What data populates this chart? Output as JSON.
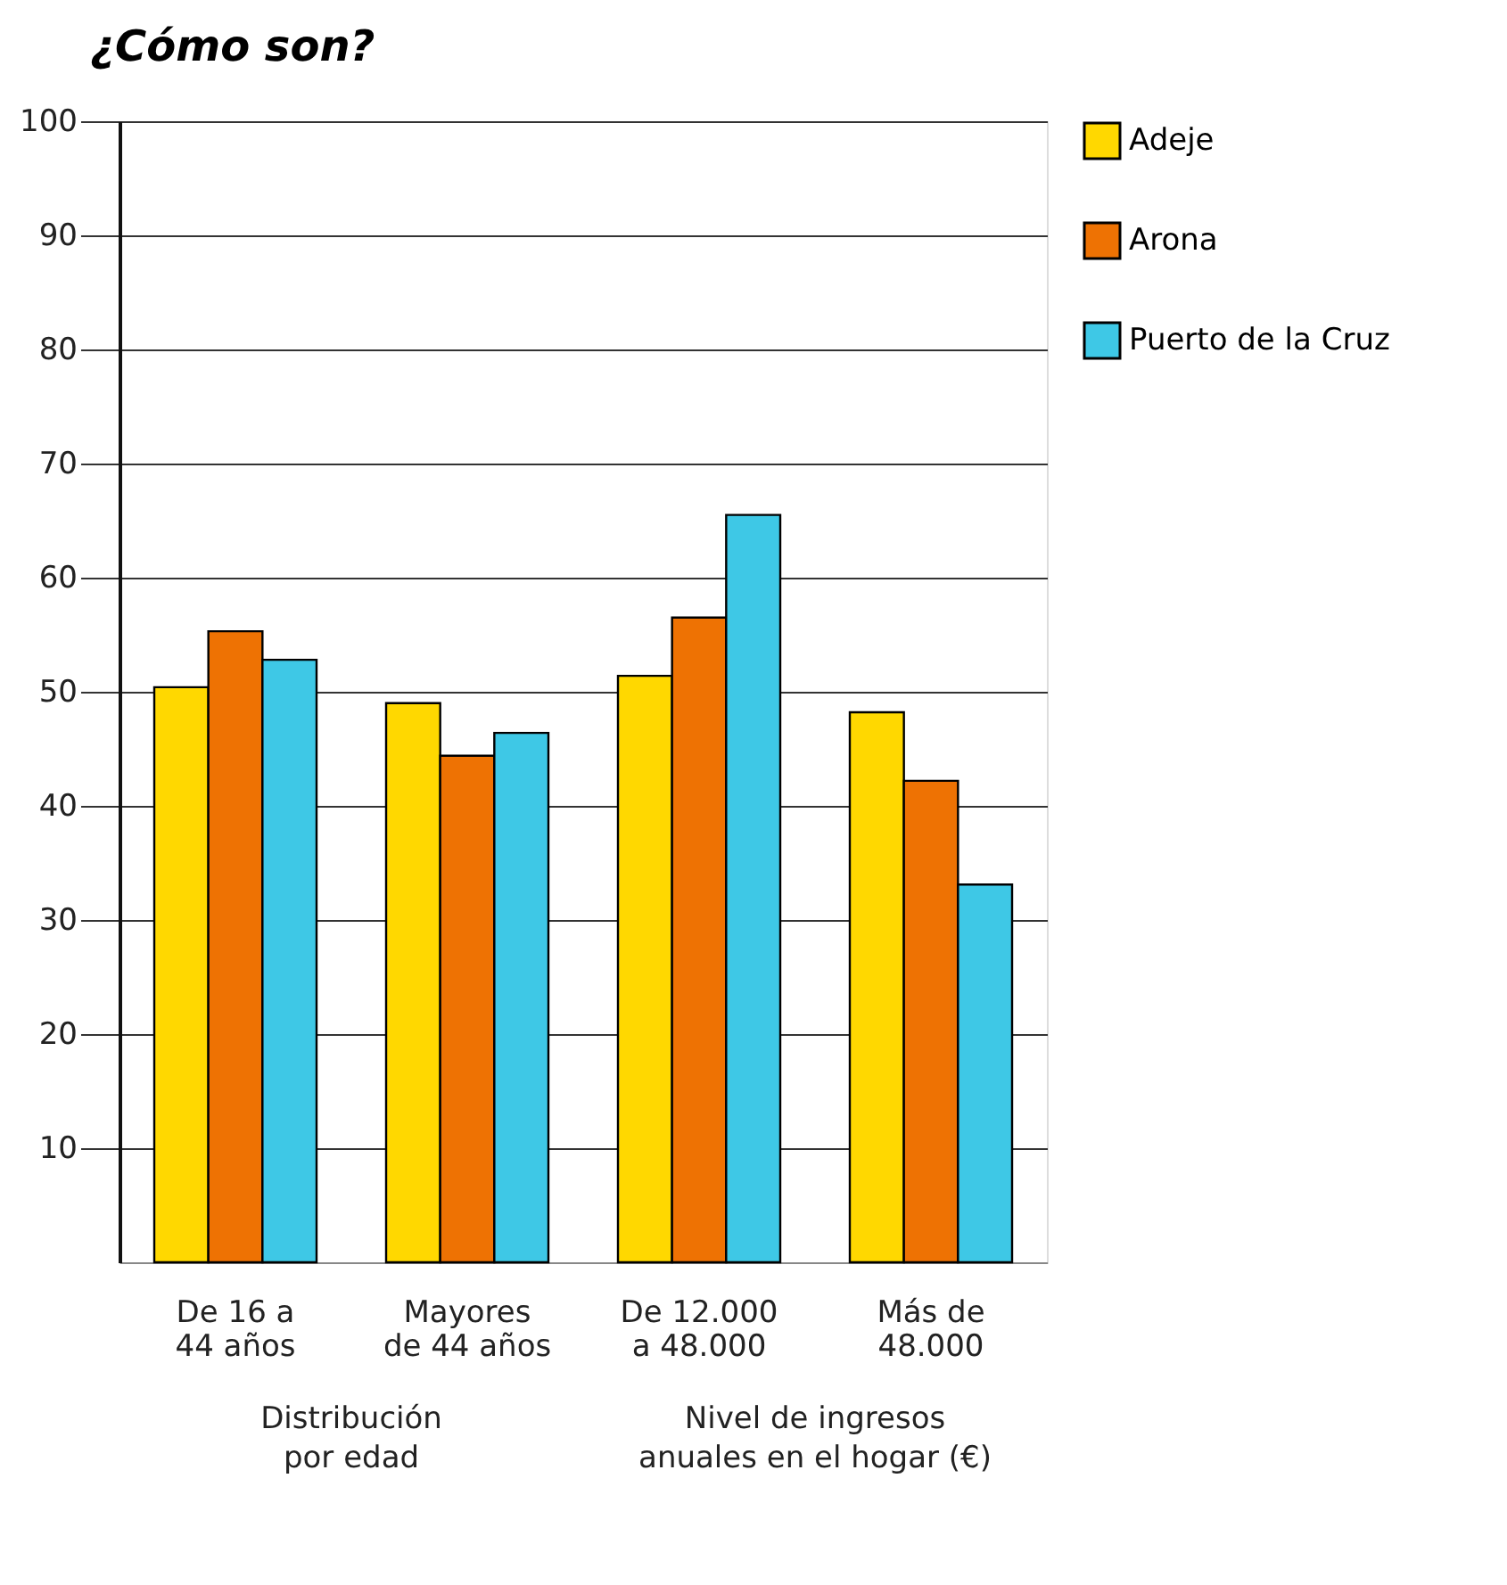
{
  "chart_data": {
    "type": "bar",
    "title": "¿Cómo son?",
    "categories": [
      "De 16 a 44 años",
      "Mayores de 44 años",
      "De 12.000 a 48.000",
      "Más de 48.000"
    ],
    "series": [
      {
        "name": "Adeje",
        "color": "#ffd800",
        "values": [
          50.4,
          49.0,
          51.4,
          48.2
        ]
      },
      {
        "name": "Arona",
        "color": "#ee7203",
        "values": [
          55.3,
          44.4,
          56.5,
          42.2
        ]
      },
      {
        "name": "Puerto de la Cruz",
        "color": "#3ec8e6",
        "values": [
          52.8,
          46.4,
          65.5,
          33.1
        ]
      }
    ],
    "ylim": [
      0,
      100
    ],
    "yticks": [
      10,
      20,
      30,
      40,
      50,
      60,
      70,
      80,
      90,
      100
    ],
    "grid": "y",
    "legend": "right",
    "annotations": [
      "Distribución por edad",
      "Nivel de ingresos anuales en el hogar (€)"
    ]
  }
}
